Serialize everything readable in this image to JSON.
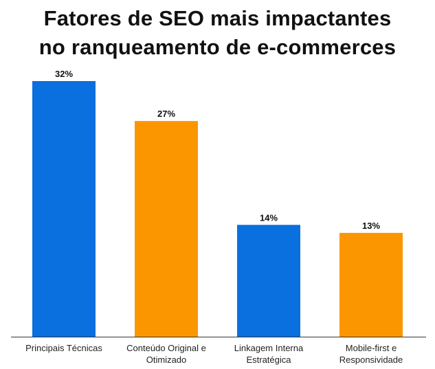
{
  "title": {
    "line1": "Fatores de SEO mais impactantes",
    "line2": "no ranqueamento de e-commerces"
  },
  "colors": {
    "blue": "#0a6fdf",
    "orange": "#fb9600",
    "axis": "#333333",
    "text": "#111111"
  },
  "chart_data": {
    "type": "bar",
    "title": "Fatores de SEO mais impactantes no ranqueamento de e-commerces",
    "xlabel": "",
    "ylabel": "",
    "ylim": [
      0,
      32
    ],
    "grid": false,
    "legend": "none",
    "categories": [
      [
        "Principais Técnicas"
      ],
      [
        "Conteúdo Original e",
        "Otimizado"
      ],
      [
        "Linkagem Interna",
        "Estratégica"
      ],
      [
        "Mobile-first e",
        "Responsividade"
      ]
    ],
    "values": [
      32,
      27,
      14,
      13
    ],
    "value_labels": [
      "32%",
      "27%",
      "14%",
      "13%"
    ],
    "bar_colors": [
      "#0a6fdf",
      "#fb9600",
      "#0a6fdf",
      "#fb9600"
    ]
  }
}
